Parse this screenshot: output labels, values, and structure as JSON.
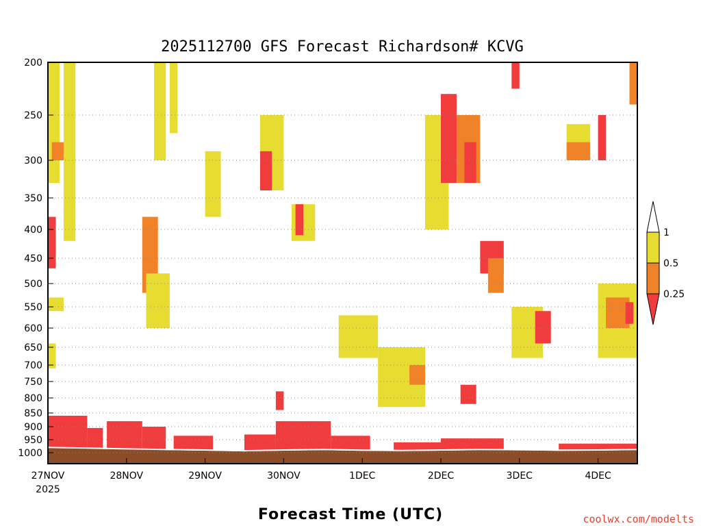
{
  "chart_data": {
    "type": "heatmap",
    "title": "2025112700 GFS Forecast Richardson# KCVG",
    "xlabel": "Forecast Time (UTC)",
    "ylabel": "",
    "credit": "coolwx.com/modelts",
    "y_scale": "pressure (log-like, inverted)",
    "ylim": [
      1000,
      200
    ],
    "xlim": [
      0,
      7.5
    ],
    "grid": "dotted horizontal at pressure levels",
    "y_ticks": [
      "200",
      "250",
      "300",
      "350",
      "400",
      "450",
      "500",
      "550",
      "600",
      "650",
      "700",
      "750",
      "800",
      "850",
      "900",
      "950",
      "1000"
    ],
    "x_ticks": [
      {
        "label": "27NOV",
        "sub": "2025",
        "day": 0
      },
      {
        "label": "28NOV",
        "sub": "",
        "day": 1
      },
      {
        "label": "29NOV",
        "sub": "",
        "day": 2
      },
      {
        "label": "30NOV",
        "sub": "",
        "day": 3
      },
      {
        "label": "1DEC",
        "sub": "",
        "day": 4
      },
      {
        "label": "2DEC",
        "sub": "",
        "day": 5
      },
      {
        "label": "3DEC",
        "sub": "",
        "day": 6
      },
      {
        "label": "4DEC",
        "sub": "",
        "day": 7
      }
    ],
    "colorbar": {
      "levels": [
        "1",
        "0.5",
        "0.25"
      ],
      "colors": {
        "above_1": "#ffffff",
        "c_05_1": "#e6dc32",
        "c_025_05": "#f08228",
        "below_025": "#f03c3c"
      }
    },
    "ground_color": "#8b4c28",
    "surface_pressure": [
      [
        0,
        982
      ],
      [
        0.5,
        985
      ],
      [
        1,
        988
      ],
      [
        1.5,
        990
      ],
      [
        2,
        992
      ],
      [
        2.5,
        995
      ],
      [
        3,
        992
      ],
      [
        3.5,
        990
      ],
      [
        4,
        993
      ],
      [
        4.5,
        994
      ],
      [
        5,
        992
      ],
      [
        5.5,
        990
      ],
      [
        6,
        991
      ],
      [
        6.5,
        993
      ],
      [
        7,
        992
      ],
      [
        7.5,
        990
      ]
    ],
    "boundary_layer": [
      {
        "day0": 0.0,
        "day1": 0.5,
        "p_top": 860,
        "p_bot": 990,
        "class": "below_025"
      },
      {
        "day0": 0.5,
        "day1": 0.7,
        "p_top": 905,
        "p_bot": 990,
        "class": "below_025"
      },
      {
        "day0": 0.75,
        "day1": 1.2,
        "p_top": 880,
        "p_bot": 990,
        "class": "below_025"
      },
      {
        "day0": 1.2,
        "day1": 1.5,
        "p_top": 900,
        "p_bot": 990,
        "class": "below_025"
      },
      {
        "day0": 1.6,
        "day1": 2.1,
        "p_top": 935,
        "p_bot": 990,
        "class": "below_025"
      },
      {
        "day0": 2.5,
        "day1": 2.9,
        "p_top": 930,
        "p_bot": 990,
        "class": "below_025"
      },
      {
        "day0": 2.9,
        "day1": 3.6,
        "p_top": 880,
        "p_bot": 990,
        "class": "below_025"
      },
      {
        "day0": 3.6,
        "day1": 4.1,
        "p_top": 935,
        "p_bot": 990,
        "class": "below_025"
      },
      {
        "day0": 4.4,
        "day1": 5.0,
        "p_top": 960,
        "p_bot": 990,
        "class": "below_025"
      },
      {
        "day0": 5.0,
        "day1": 5.8,
        "p_top": 945,
        "p_bot": 990,
        "class": "below_025"
      },
      {
        "day0": 6.5,
        "day1": 7.5,
        "p_top": 965,
        "p_bot": 990,
        "class": "below_025"
      }
    ],
    "regions": [
      {
        "day0": 0.0,
        "day1": 0.15,
        "p_top": 200,
        "p_bot": 330,
        "class": "c_05_1"
      },
      {
        "day0": 0.05,
        "day1": 0.2,
        "p_top": 280,
        "p_bot": 300,
        "class": "c_025_05"
      },
      {
        "day0": 0.0,
        "day1": 0.1,
        "p_top": 380,
        "p_bot": 470,
        "class": "below_025"
      },
      {
        "day0": 0.0,
        "day1": 0.2,
        "p_top": 530,
        "p_bot": 560,
        "class": "c_05_1"
      },
      {
        "day0": 0.0,
        "day1": 0.1,
        "p_top": 640,
        "p_bot": 710,
        "class": "c_05_1"
      },
      {
        "day0": 0.2,
        "day1": 0.35,
        "p_top": 200,
        "p_bot": 420,
        "class": "c_05_1"
      },
      {
        "day0": 1.2,
        "day1": 1.4,
        "p_top": 380,
        "p_bot": 520,
        "class": "c_025_05"
      },
      {
        "day0": 1.35,
        "day1": 1.5,
        "p_top": 200,
        "p_bot": 300,
        "class": "c_05_1"
      },
      {
        "day0": 1.55,
        "day1": 1.65,
        "p_top": 200,
        "p_bot": 270,
        "class": "c_05_1"
      },
      {
        "day0": 1.25,
        "day1": 1.55,
        "p_top": 480,
        "p_bot": 600,
        "class": "c_05_1"
      },
      {
        "day0": 2.0,
        "day1": 2.2,
        "p_top": 290,
        "p_bot": 380,
        "class": "c_05_1"
      },
      {
        "day0": 2.7,
        "day1": 3.0,
        "p_top": 250,
        "p_bot": 340,
        "class": "c_05_1"
      },
      {
        "day0": 2.7,
        "day1": 2.85,
        "p_top": 290,
        "p_bot": 340,
        "class": "below_025"
      },
      {
        "day0": 3.1,
        "day1": 3.4,
        "p_top": 360,
        "p_bot": 420,
        "class": "c_05_1"
      },
      {
        "day0": 3.15,
        "day1": 3.25,
        "p_top": 360,
        "p_bot": 410,
        "class": "below_025"
      },
      {
        "day0": 2.9,
        "day1": 3.0,
        "p_top": 780,
        "p_bot": 840,
        "class": "below_025"
      },
      {
        "day0": 3.7,
        "day1": 4.2,
        "p_top": 570,
        "p_bot": 680,
        "class": "c_05_1"
      },
      {
        "day0": 4.2,
        "day1": 4.8,
        "p_top": 650,
        "p_bot": 830,
        "class": "c_05_1"
      },
      {
        "day0": 4.6,
        "day1": 4.8,
        "p_top": 700,
        "p_bot": 760,
        "class": "c_025_05"
      },
      {
        "day0": 4.8,
        "day1": 5.1,
        "p_top": 250,
        "p_bot": 400,
        "class": "c_05_1"
      },
      {
        "day0": 5.0,
        "day1": 5.2,
        "p_top": 230,
        "p_bot": 330,
        "class": "below_025"
      },
      {
        "day0": 5.2,
        "day1": 5.5,
        "p_top": 250,
        "p_bot": 330,
        "class": "c_025_05"
      },
      {
        "day0": 5.3,
        "day1": 5.45,
        "p_top": 280,
        "p_bot": 330,
        "class": "below_025"
      },
      {
        "day0": 5.5,
        "day1": 5.8,
        "p_top": 420,
        "p_bot": 480,
        "class": "below_025"
      },
      {
        "day0": 5.6,
        "day1": 5.8,
        "p_top": 450,
        "p_bot": 520,
        "class": "c_025_05"
      },
      {
        "day0": 5.25,
        "day1": 5.45,
        "p_top": 760,
        "p_bot": 820,
        "class": "below_025"
      },
      {
        "day0": 5.9,
        "day1": 6.0,
        "p_top": 200,
        "p_bot": 225,
        "class": "below_025"
      },
      {
        "day0": 5.9,
        "day1": 6.3,
        "p_top": 550,
        "p_bot": 680,
        "class": "c_05_1"
      },
      {
        "day0": 6.2,
        "day1": 6.4,
        "p_top": 560,
        "p_bot": 640,
        "class": "below_025"
      },
      {
        "day0": 6.6,
        "day1": 6.9,
        "p_top": 260,
        "p_bot": 300,
        "class": "c_05_1"
      },
      {
        "day0": 6.6,
        "day1": 6.9,
        "p_top": 280,
        "p_bot": 300,
        "class": "c_025_05"
      },
      {
        "day0": 7.0,
        "day1": 7.1,
        "p_top": 250,
        "p_bot": 300,
        "class": "below_025"
      },
      {
        "day0": 7.0,
        "day1": 7.5,
        "p_top": 500,
        "p_bot": 680,
        "class": "c_05_1"
      },
      {
        "day0": 7.1,
        "day1": 7.4,
        "p_top": 530,
        "p_bot": 600,
        "class": "c_025_05"
      },
      {
        "day0": 7.35,
        "day1": 7.45,
        "p_top": 540,
        "p_bot": 590,
        "class": "below_025"
      },
      {
        "day0": 7.4,
        "day1": 7.5,
        "p_top": 200,
        "p_bot": 240,
        "class": "c_025_05"
      }
    ]
  }
}
